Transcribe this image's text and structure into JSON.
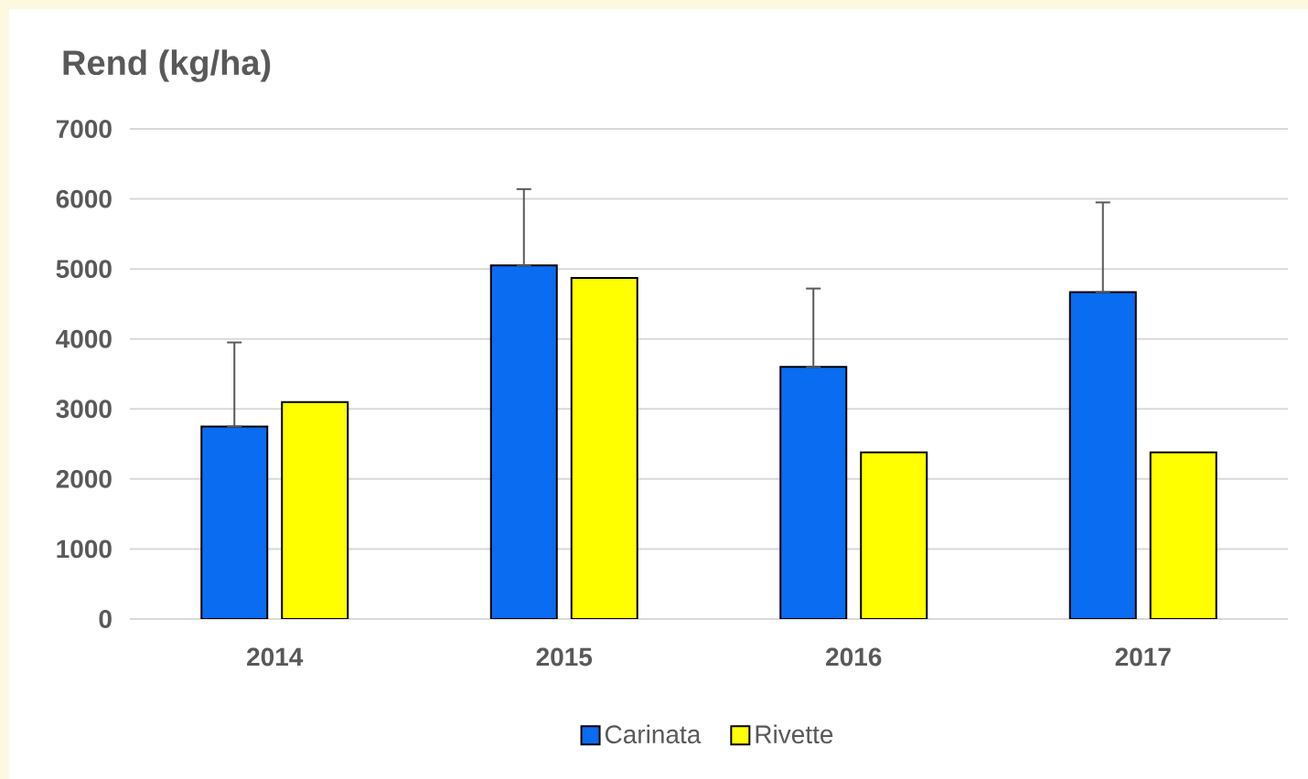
{
  "chart_data": {
    "type": "bar",
    "ylabel": "Rend (kg/ha)",
    "categories": [
      "2014",
      "2015",
      "2016",
      "2017"
    ],
    "series": [
      {
        "name": "Carinata",
        "color": "#0a6cf0",
        "values": [
          2750,
          5050,
          3600,
          4670
        ],
        "errors": [
          [
            2750,
            3950
          ],
          [
            5050,
            6140
          ],
          [
            3600,
            4720
          ],
          [
            4670,
            5950
          ]
        ]
      },
      {
        "name": "Rivette",
        "color": "#ffff00",
        "values": [
          3100,
          4870,
          2380,
          2380
        ]
      }
    ],
    "ylim": [
      0,
      7000
    ],
    "yticks": [
      0,
      1000,
      2000,
      3000,
      4000,
      5000,
      6000,
      7000
    ],
    "grid": "y",
    "legend": "bottom"
  }
}
